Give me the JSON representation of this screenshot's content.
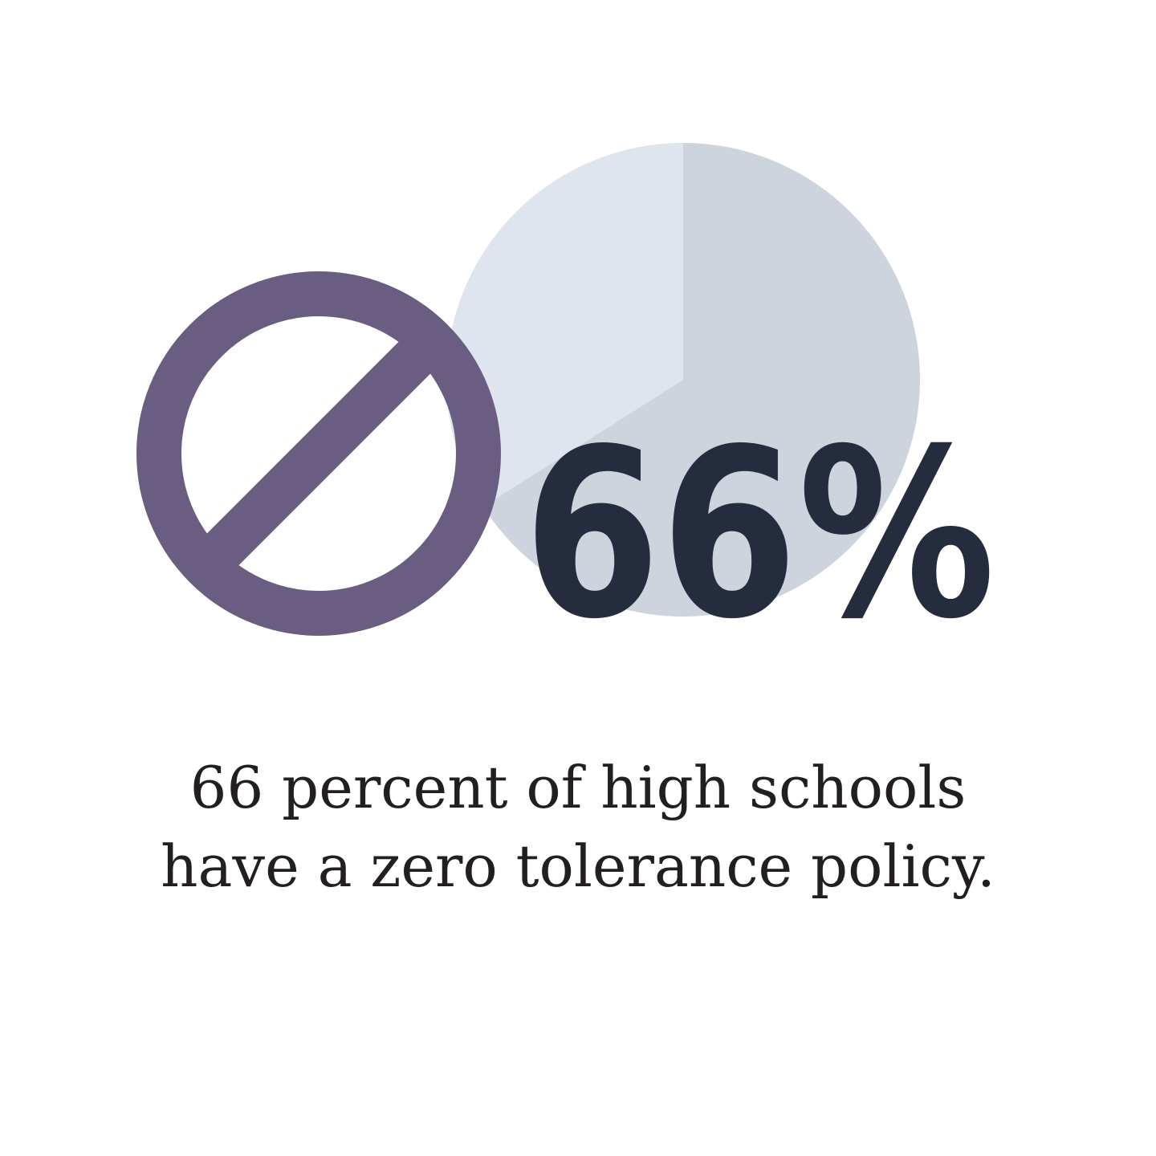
{
  "chart_data": {
    "type": "pie",
    "values": [
      66,
      34
    ],
    "highlight_value": 66,
    "stat_label": "66%",
    "colors": {
      "highlight": "#cdd4dd",
      "remainder": "#dfe5ee"
    }
  },
  "icon": {
    "name": "prohibited-icon",
    "color": "#6a5d82"
  },
  "stat_color": "#252c3e",
  "caption": {
    "line1": "66 percent of high schools",
    "line2": "have a zero tolerance policy."
  }
}
